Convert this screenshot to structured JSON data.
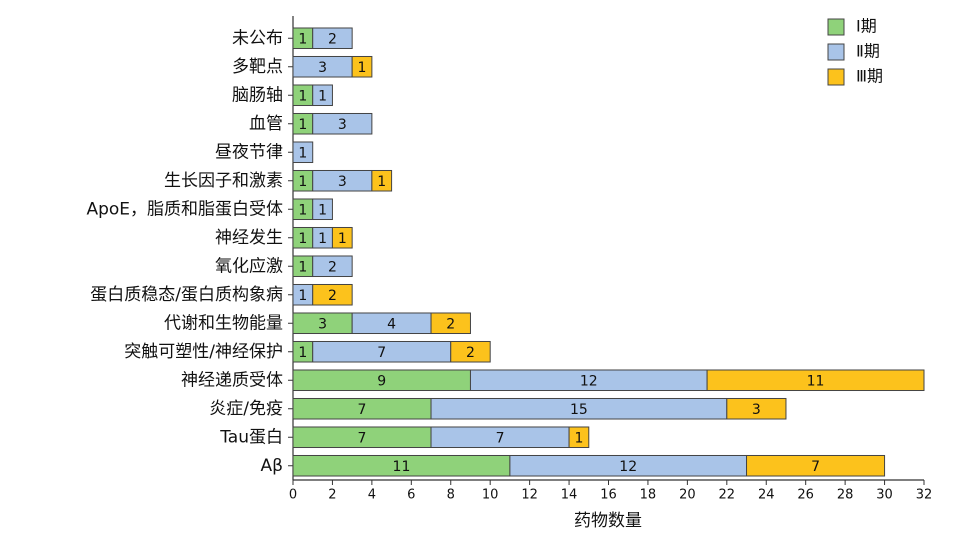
{
  "chart_data": {
    "type": "stacked-bar",
    "orientation": "horizontal",
    "xlabel": "药物数量",
    "categories": [
      "未公布",
      "多靶点",
      "脑肠轴",
      "血管",
      "昼夜节律",
      "生长因子和激素",
      "ApoE，脂质和脂蛋白受体",
      "神经发生",
      "氧化应激",
      "蛋白质稳态/蛋白质构象病",
      "代谢和生物能量",
      "突触可塑性/神经保护",
      "神经递质受体",
      "炎症/免疫",
      "Tau蛋白",
      "Aβ"
    ],
    "series": [
      {
        "name": "Ⅰ期",
        "color": "#8fd27a",
        "values": [
          1,
          null,
          1,
          1,
          null,
          1,
          1,
          1,
          1,
          null,
          3,
          1,
          9,
          7,
          7,
          11
        ]
      },
      {
        "name": "Ⅱ期",
        "color": "#a9c4e8",
        "values": [
          2,
          3,
          1,
          3,
          1,
          3,
          1,
          1,
          2,
          1,
          4,
          7,
          12,
          15,
          7,
          12
        ]
      },
      {
        "name": "Ⅲ期",
        "color": "#fcc21c",
        "values": [
          null,
          1,
          null,
          null,
          null,
          1,
          null,
          1,
          null,
          2,
          2,
          2,
          11,
          3,
          1,
          7
        ]
      }
    ],
    "xlim": [
      0,
      32
    ],
    "xticks": [
      0,
      2,
      4,
      6,
      8,
      10,
      12,
      14,
      16,
      18,
      20,
      22,
      24,
      26,
      28,
      30,
      32
    ],
    "legend": "top-right"
  }
}
